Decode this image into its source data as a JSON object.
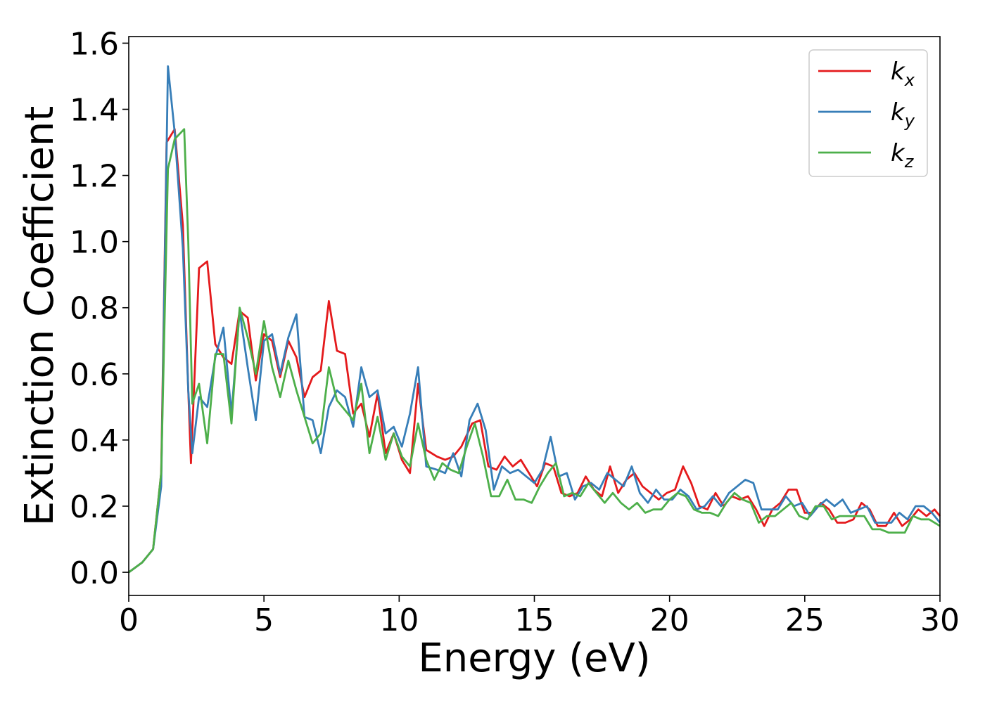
{
  "chart_data": {
    "type": "line",
    "title": "",
    "xlabel": "Energy (eV)",
    "ylabel": "Extinction Coefficient",
    "xlim": [
      0,
      30
    ],
    "ylim": [
      -0.07,
      1.62
    ],
    "x_ticks": [
      "0",
      "5",
      "10",
      "15",
      "20",
      "25",
      "30"
    ],
    "y_ticks": [
      "0.0",
      "0.2",
      "0.4",
      "0.6",
      "0.8",
      "1.0",
      "1.2",
      "1.4",
      "1.6"
    ],
    "grid": false,
    "legend_position": "top-right",
    "series": [
      {
        "name": "k",
        "subscript": "x",
        "color": "#e41a1c",
        "points": [
          [
            0,
            0
          ],
          [
            0.5,
            0.03
          ],
          [
            0.9,
            0.07
          ],
          [
            1.2,
            0.3
          ],
          [
            1.4,
            1.3
          ],
          [
            1.7,
            1.34
          ],
          [
            2.0,
            1.05
          ],
          [
            2.2,
            0.55
          ],
          [
            2.3,
            0.33
          ],
          [
            2.6,
            0.92
          ],
          [
            2.9,
            0.94
          ],
          [
            3.2,
            0.69
          ],
          [
            3.5,
            0.65
          ],
          [
            3.8,
            0.63
          ],
          [
            4.1,
            0.79
          ],
          [
            4.4,
            0.77
          ],
          [
            4.7,
            0.58
          ],
          [
            5.0,
            0.72
          ],
          [
            5.3,
            0.7
          ],
          [
            5.6,
            0.59
          ],
          [
            5.9,
            0.7
          ],
          [
            6.2,
            0.65
          ],
          [
            6.5,
            0.53
          ],
          [
            6.8,
            0.59
          ],
          [
            7.1,
            0.61
          ],
          [
            7.4,
            0.82
          ],
          [
            7.7,
            0.67
          ],
          [
            8.0,
            0.66
          ],
          [
            8.3,
            0.48
          ],
          [
            8.6,
            0.51
          ],
          [
            8.9,
            0.41
          ],
          [
            9.2,
            0.54
          ],
          [
            9.5,
            0.36
          ],
          [
            9.8,
            0.42
          ],
          [
            10.1,
            0.34
          ],
          [
            10.4,
            0.3
          ],
          [
            10.7,
            0.57
          ],
          [
            11.0,
            0.37
          ],
          [
            11.4,
            0.35
          ],
          [
            11.7,
            0.34
          ],
          [
            12.0,
            0.35
          ],
          [
            12.3,
            0.38
          ],
          [
            12.7,
            0.45
          ],
          [
            13.0,
            0.46
          ],
          [
            13.3,
            0.32
          ],
          [
            13.6,
            0.31
          ],
          [
            13.9,
            0.35
          ],
          [
            14.2,
            0.32
          ],
          [
            14.5,
            0.34
          ],
          [
            14.8,
            0.3
          ],
          [
            15.1,
            0.26
          ],
          [
            15.4,
            0.33
          ],
          [
            15.7,
            0.32
          ],
          [
            16.0,
            0.24
          ],
          [
            16.3,
            0.23
          ],
          [
            16.6,
            0.24
          ],
          [
            16.9,
            0.29
          ],
          [
            17.2,
            0.25
          ],
          [
            17.5,
            0.23
          ],
          [
            17.8,
            0.32
          ],
          [
            18.1,
            0.24
          ],
          [
            18.4,
            0.28
          ],
          [
            18.7,
            0.3
          ],
          [
            19.0,
            0.26
          ],
          [
            19.3,
            0.24
          ],
          [
            19.6,
            0.22
          ],
          [
            19.9,
            0.24
          ],
          [
            20.2,
            0.25
          ],
          [
            20.5,
            0.32
          ],
          [
            20.8,
            0.27
          ],
          [
            21.1,
            0.2
          ],
          [
            21.4,
            0.19
          ],
          [
            21.7,
            0.24
          ],
          [
            22.0,
            0.2
          ],
          [
            22.3,
            0.23
          ],
          [
            22.6,
            0.22
          ],
          [
            22.9,
            0.23
          ],
          [
            23.2,
            0.19
          ],
          [
            23.5,
            0.14
          ],
          [
            23.8,
            0.19
          ],
          [
            24.1,
            0.21
          ],
          [
            24.4,
            0.25
          ],
          [
            24.7,
            0.25
          ],
          [
            25.0,
            0.18
          ],
          [
            25.3,
            0.18
          ],
          [
            25.6,
            0.21
          ],
          [
            25.9,
            0.19
          ],
          [
            26.2,
            0.15
          ],
          [
            26.5,
            0.15
          ],
          [
            26.8,
            0.16
          ],
          [
            27.1,
            0.21
          ],
          [
            27.4,
            0.19
          ],
          [
            27.7,
            0.14
          ],
          [
            28.0,
            0.14
          ],
          [
            28.3,
            0.18
          ],
          [
            28.6,
            0.14
          ],
          [
            28.9,
            0.16
          ],
          [
            29.2,
            0.19
          ],
          [
            29.5,
            0.17
          ],
          [
            29.8,
            0.19
          ],
          [
            30,
            0.17
          ]
        ]
      },
      {
        "name": "k",
        "subscript": "y",
        "color": "#377eb8",
        "points": [
          [
            0,
            0
          ],
          [
            0.5,
            0.03
          ],
          [
            0.9,
            0.07
          ],
          [
            1.2,
            0.26
          ],
          [
            1.45,
            1.53
          ],
          [
            1.7,
            1.33
          ],
          [
            2.0,
            0.98
          ],
          [
            2.2,
            0.55
          ],
          [
            2.35,
            0.36
          ],
          [
            2.6,
            0.53
          ],
          [
            2.9,
            0.5
          ],
          [
            3.2,
            0.65
          ],
          [
            3.5,
            0.74
          ],
          [
            3.8,
            0.48
          ],
          [
            4.1,
            0.79
          ],
          [
            4.4,
            0.62
          ],
          [
            4.7,
            0.46
          ],
          [
            5.0,
            0.7
          ],
          [
            5.3,
            0.72
          ],
          [
            5.6,
            0.6
          ],
          [
            5.9,
            0.71
          ],
          [
            6.2,
            0.78
          ],
          [
            6.5,
            0.47
          ],
          [
            6.8,
            0.46
          ],
          [
            7.1,
            0.36
          ],
          [
            7.4,
            0.5
          ],
          [
            7.7,
            0.55
          ],
          [
            8.0,
            0.53
          ],
          [
            8.3,
            0.44
          ],
          [
            8.6,
            0.62
          ],
          [
            8.9,
            0.53
          ],
          [
            9.2,
            0.55
          ],
          [
            9.5,
            0.42
          ],
          [
            9.8,
            0.44
          ],
          [
            10.1,
            0.38
          ],
          [
            10.4,
            0.48
          ],
          [
            10.7,
            0.62
          ],
          [
            11.0,
            0.32
          ],
          [
            11.4,
            0.31
          ],
          [
            11.7,
            0.3
          ],
          [
            12.0,
            0.36
          ],
          [
            12.3,
            0.29
          ],
          [
            12.6,
            0.46
          ],
          [
            12.9,
            0.51
          ],
          [
            13.2,
            0.43
          ],
          [
            13.5,
            0.25
          ],
          [
            13.8,
            0.32
          ],
          [
            14.1,
            0.3
          ],
          [
            14.4,
            0.31
          ],
          [
            14.7,
            0.29
          ],
          [
            15.0,
            0.27
          ],
          [
            15.3,
            0.31
          ],
          [
            15.6,
            0.41
          ],
          [
            15.9,
            0.29
          ],
          [
            16.2,
            0.3
          ],
          [
            16.5,
            0.22
          ],
          [
            16.8,
            0.26
          ],
          [
            17.1,
            0.27
          ],
          [
            17.4,
            0.25
          ],
          [
            17.7,
            0.3
          ],
          [
            18.0,
            0.28
          ],
          [
            18.3,
            0.26
          ],
          [
            18.6,
            0.32
          ],
          [
            18.9,
            0.24
          ],
          [
            19.2,
            0.21
          ],
          [
            19.5,
            0.25
          ],
          [
            19.8,
            0.22
          ],
          [
            20.1,
            0.22
          ],
          [
            20.4,
            0.25
          ],
          [
            20.7,
            0.23
          ],
          [
            21.0,
            0.19
          ],
          [
            21.3,
            0.2
          ],
          [
            21.6,
            0.23
          ],
          [
            21.9,
            0.2
          ],
          [
            22.2,
            0.24
          ],
          [
            22.5,
            0.26
          ],
          [
            22.8,
            0.28
          ],
          [
            23.1,
            0.27
          ],
          [
            23.4,
            0.19
          ],
          [
            23.7,
            0.19
          ],
          [
            24.0,
            0.19
          ],
          [
            24.3,
            0.23
          ],
          [
            24.6,
            0.2
          ],
          [
            24.9,
            0.21
          ],
          [
            25.2,
            0.17
          ],
          [
            25.5,
            0.2
          ],
          [
            25.8,
            0.22
          ],
          [
            26.1,
            0.2
          ],
          [
            26.4,
            0.22
          ],
          [
            26.7,
            0.18
          ],
          [
            27.0,
            0.19
          ],
          [
            27.3,
            0.2
          ],
          [
            27.6,
            0.15
          ],
          [
            27.9,
            0.15
          ],
          [
            28.2,
            0.15
          ],
          [
            28.5,
            0.18
          ],
          [
            28.8,
            0.16
          ],
          [
            29.1,
            0.2
          ],
          [
            29.4,
            0.2
          ],
          [
            29.7,
            0.18
          ],
          [
            30,
            0.15
          ]
        ]
      },
      {
        "name": "k",
        "subscript": "z",
        "color": "#4daf4a",
        "points": [
          [
            0,
            0
          ],
          [
            0.5,
            0.03
          ],
          [
            0.9,
            0.07
          ],
          [
            1.2,
            0.3
          ],
          [
            1.45,
            1.22
          ],
          [
            1.7,
            1.31
          ],
          [
            2.05,
            1.34
          ],
          [
            2.2,
            1.0
          ],
          [
            2.35,
            0.51
          ],
          [
            2.6,
            0.57
          ],
          [
            2.9,
            0.39
          ],
          [
            3.2,
            0.66
          ],
          [
            3.5,
            0.66
          ],
          [
            3.8,
            0.45
          ],
          [
            4.1,
            0.8
          ],
          [
            4.4,
            0.71
          ],
          [
            4.7,
            0.6
          ],
          [
            5.0,
            0.76
          ],
          [
            5.3,
            0.62
          ],
          [
            5.6,
            0.53
          ],
          [
            5.9,
            0.64
          ],
          [
            6.2,
            0.55
          ],
          [
            6.5,
            0.47
          ],
          [
            6.8,
            0.39
          ],
          [
            7.1,
            0.42
          ],
          [
            7.4,
            0.62
          ],
          [
            7.7,
            0.52
          ],
          [
            8.0,
            0.49
          ],
          [
            8.3,
            0.46
          ],
          [
            8.6,
            0.57
          ],
          [
            8.9,
            0.36
          ],
          [
            9.2,
            0.47
          ],
          [
            9.5,
            0.34
          ],
          [
            9.8,
            0.42
          ],
          [
            10.1,
            0.35
          ],
          [
            10.4,
            0.32
          ],
          [
            10.7,
            0.45
          ],
          [
            11.0,
            0.34
          ],
          [
            11.3,
            0.28
          ],
          [
            11.6,
            0.33
          ],
          [
            11.9,
            0.31
          ],
          [
            12.2,
            0.3
          ],
          [
            12.5,
            0.38
          ],
          [
            12.8,
            0.45
          ],
          [
            13.1,
            0.35
          ],
          [
            13.4,
            0.23
          ],
          [
            13.7,
            0.23
          ],
          [
            14.0,
            0.28
          ],
          [
            14.3,
            0.22
          ],
          [
            14.6,
            0.22
          ],
          [
            14.9,
            0.21
          ],
          [
            15.2,
            0.26
          ],
          [
            15.5,
            0.3
          ],
          [
            15.8,
            0.33
          ],
          [
            16.1,
            0.23
          ],
          [
            16.4,
            0.24
          ],
          [
            16.7,
            0.23
          ],
          [
            17.0,
            0.27
          ],
          [
            17.3,
            0.24
          ],
          [
            17.6,
            0.21
          ],
          [
            17.9,
            0.24
          ],
          [
            18.2,
            0.21
          ],
          [
            18.5,
            0.19
          ],
          [
            18.8,
            0.21
          ],
          [
            19.1,
            0.18
          ],
          [
            19.4,
            0.19
          ],
          [
            19.7,
            0.19
          ],
          [
            20.0,
            0.22
          ],
          [
            20.3,
            0.24
          ],
          [
            20.6,
            0.23
          ],
          [
            20.9,
            0.19
          ],
          [
            21.2,
            0.18
          ],
          [
            21.5,
            0.18
          ],
          [
            21.8,
            0.17
          ],
          [
            22.1,
            0.21
          ],
          [
            22.4,
            0.24
          ],
          [
            22.7,
            0.22
          ],
          [
            23.0,
            0.21
          ],
          [
            23.3,
            0.15
          ],
          [
            23.6,
            0.17
          ],
          [
            23.9,
            0.17
          ],
          [
            24.2,
            0.19
          ],
          [
            24.5,
            0.21
          ],
          [
            24.8,
            0.17
          ],
          [
            25.1,
            0.16
          ],
          [
            25.4,
            0.2
          ],
          [
            25.7,
            0.2
          ],
          [
            26.0,
            0.16
          ],
          [
            26.3,
            0.17
          ],
          [
            26.6,
            0.17
          ],
          [
            26.9,
            0.17
          ],
          [
            27.2,
            0.17
          ],
          [
            27.5,
            0.13
          ],
          [
            27.8,
            0.13
          ],
          [
            28.1,
            0.12
          ],
          [
            28.4,
            0.12
          ],
          [
            28.7,
            0.12
          ],
          [
            29.0,
            0.17
          ],
          [
            29.3,
            0.16
          ],
          [
            29.6,
            0.16
          ],
          [
            30,
            0.14
          ]
        ]
      }
    ]
  }
}
